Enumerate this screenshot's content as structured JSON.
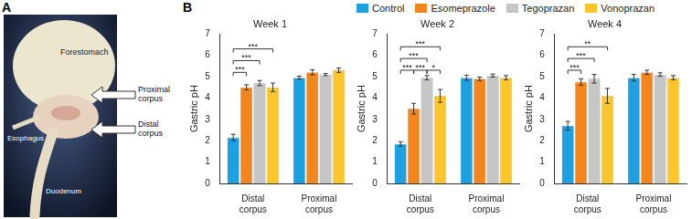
{
  "figure": {
    "panel_labels": [
      "A",
      "B"
    ],
    "photo_labels": {
      "forestomach": "Forestomach",
      "esophagus": "Esophagus",
      "duodenum": "Duodenum",
      "proximal": "Proximal corpus",
      "distal": "Distal corpus"
    }
  },
  "chart_data": [
    {
      "type": "bar",
      "title": "Week 1",
      "y_label": "Gastric pH",
      "categories": [
        "Distal corpus",
        "Proximal corpus"
      ],
      "ylim": [
        0,
        7
      ],
      "yticks": [
        0,
        1,
        2,
        3,
        4,
        5,
        6,
        7
      ],
      "grid": false,
      "legend": "top",
      "series": [
        {
          "name": "Control",
          "color": "#1e9fe0",
          "values": [
            2.15,
            4.95
          ],
          "errors": [
            0.15,
            0.07
          ]
        },
        {
          "name": "Esomeprazole",
          "color": "#f2851c",
          "values": [
            4.5,
            5.2
          ],
          "errors": [
            0.12,
            0.12
          ]
        },
        {
          "name": "Tegoprazan",
          "color": "#c6c6c6",
          "values": [
            4.7,
            5.1
          ],
          "errors": [
            0.12,
            0.05
          ]
        },
        {
          "name": "Vonoprazan",
          "color": "#fcc62a",
          "values": [
            4.5,
            5.3
          ],
          "errors": [
            0.2,
            0.1
          ]
        }
      ],
      "significance": [
        {
          "category": "Distal corpus",
          "from": "Control",
          "to": "Esomeprazole",
          "label": "***",
          "y": 5.2
        },
        {
          "category": "Distal corpus",
          "from": "Control",
          "to": "Tegoprazan",
          "label": "***",
          "y": 5.75
        },
        {
          "category": "Distal corpus",
          "from": "Control",
          "to": "Vonoprazan",
          "label": "***",
          "y": 6.3
        }
      ]
    },
    {
      "type": "bar",
      "title": "Week 2",
      "y_label": "Gastric pH",
      "categories": [
        "Distal corpus",
        "Proximal corpus"
      ],
      "ylim": [
        0,
        7
      ],
      "yticks": [
        0,
        1,
        2,
        3,
        4,
        5,
        6,
        7
      ],
      "grid": false,
      "series": [
        {
          "name": "Control",
          "color": "#1e9fe0",
          "values": [
            1.85,
            4.95
          ],
          "errors": [
            0.1,
            0.12
          ]
        },
        {
          "name": "Esomeprazole",
          "color": "#f2851c",
          "values": [
            3.5,
            4.9
          ],
          "errors": [
            0.25,
            0.08
          ]
        },
        {
          "name": "Tegoprazan",
          "color": "#c6c6c6",
          "values": [
            4.95,
            5.05
          ],
          "errors": [
            0.1,
            0.07
          ]
        },
        {
          "name": "Vonoprazan",
          "color": "#fcc62a",
          "values": [
            4.1,
            4.95
          ],
          "errors": [
            0.3,
            0.1
          ]
        }
      ],
      "significance": [
        {
          "category": "Distal corpus",
          "from": "Control",
          "to": "Esomeprazole",
          "label": "***",
          "y": 5.3
        },
        {
          "category": "Distal corpus",
          "from": "Esomeprazole",
          "to": "Tegoprazan",
          "label": "***",
          "y": 5.3
        },
        {
          "category": "Distal corpus",
          "from": "Tegoprazan",
          "to": "Vonoprazan",
          "label": "*",
          "y": 5.3
        },
        {
          "category": "Distal corpus",
          "from": "Control",
          "to": "Tegoprazan",
          "label": "***",
          "y": 5.85
        },
        {
          "category": "Distal corpus",
          "from": "Control",
          "to": "Vonoprazan",
          "label": "***",
          "y": 6.4
        }
      ]
    },
    {
      "type": "bar",
      "title": "Week 4",
      "y_label": "Gastric pH",
      "categories": [
        "Distal corpus",
        "Proximal corpus"
      ],
      "ylim": [
        0,
        7
      ],
      "yticks": [
        0,
        1,
        2,
        3,
        4,
        5,
        6,
        7
      ],
      "grid": false,
      "series": [
        {
          "name": "Control",
          "color": "#1e9fe0",
          "values": [
            2.7,
            4.95
          ],
          "errors": [
            0.2,
            0.15
          ]
        },
        {
          "name": "Esomeprazole",
          "color": "#f2851c",
          "values": [
            4.75,
            5.2
          ],
          "errors": [
            0.15,
            0.1
          ]
        },
        {
          "name": "Tegoprazan",
          "color": "#c6c6c6",
          "values": [
            4.9,
            5.1
          ],
          "errors": [
            0.2,
            0.08
          ]
        },
        {
          "name": "Vonoprazan",
          "color": "#fcc62a",
          "values": [
            4.1,
            4.95
          ],
          "errors": [
            0.35,
            0.1
          ]
        }
      ],
      "significance": [
        {
          "category": "Distal corpus",
          "from": "Control",
          "to": "Esomeprazole",
          "label": "***",
          "y": 5.3
        },
        {
          "category": "Distal corpus",
          "from": "Control",
          "to": "Tegoprazan",
          "label": "***",
          "y": 5.85
        },
        {
          "category": "Distal corpus",
          "from": "Control",
          "to": "Vonoprazan",
          "label": "**",
          "y": 6.4
        }
      ]
    }
  ]
}
